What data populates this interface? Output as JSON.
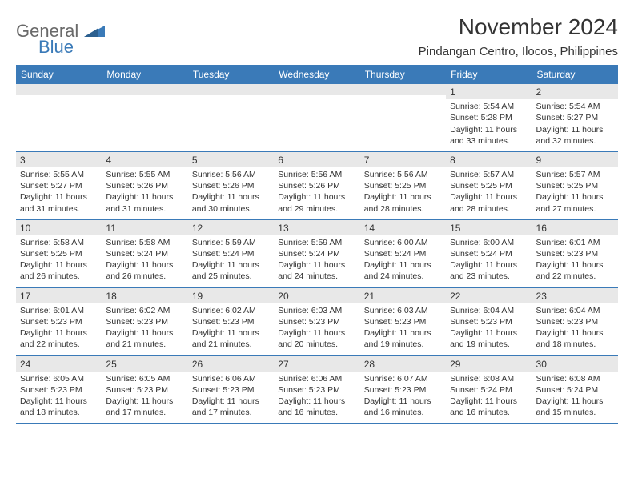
{
  "brand": {
    "word1": "General",
    "word2": "Blue",
    "color1": "#6a6a6a",
    "color2": "#3a7ab8"
  },
  "title": "November 2024",
  "location": "Pindangan Centro, Ilocos, Philippines",
  "colors": {
    "header_bg": "#3a7ab8",
    "header_text": "#ffffff",
    "cell_border": "#3a7ab8",
    "shade_bg": "#e8e8e8",
    "text": "#333333",
    "page_bg": "#ffffff"
  },
  "day_names": [
    "Sunday",
    "Monday",
    "Tuesday",
    "Wednesday",
    "Thursday",
    "Friday",
    "Saturday"
  ],
  "weeks": [
    [
      {
        "day": "",
        "sunrise": "",
        "sunset": "",
        "daylight": ""
      },
      {
        "day": "",
        "sunrise": "",
        "sunset": "",
        "daylight": ""
      },
      {
        "day": "",
        "sunrise": "",
        "sunset": "",
        "daylight": ""
      },
      {
        "day": "",
        "sunrise": "",
        "sunset": "",
        "daylight": ""
      },
      {
        "day": "",
        "sunrise": "",
        "sunset": "",
        "daylight": ""
      },
      {
        "day": "1",
        "sunrise": "Sunrise: 5:54 AM",
        "sunset": "Sunset: 5:28 PM",
        "daylight": "Daylight: 11 hours and 33 minutes."
      },
      {
        "day": "2",
        "sunrise": "Sunrise: 5:54 AM",
        "sunset": "Sunset: 5:27 PM",
        "daylight": "Daylight: 11 hours and 32 minutes."
      }
    ],
    [
      {
        "day": "3",
        "sunrise": "Sunrise: 5:55 AM",
        "sunset": "Sunset: 5:27 PM",
        "daylight": "Daylight: 11 hours and 31 minutes."
      },
      {
        "day": "4",
        "sunrise": "Sunrise: 5:55 AM",
        "sunset": "Sunset: 5:26 PM",
        "daylight": "Daylight: 11 hours and 31 minutes."
      },
      {
        "day": "5",
        "sunrise": "Sunrise: 5:56 AM",
        "sunset": "Sunset: 5:26 PM",
        "daylight": "Daylight: 11 hours and 30 minutes."
      },
      {
        "day": "6",
        "sunrise": "Sunrise: 5:56 AM",
        "sunset": "Sunset: 5:26 PM",
        "daylight": "Daylight: 11 hours and 29 minutes."
      },
      {
        "day": "7",
        "sunrise": "Sunrise: 5:56 AM",
        "sunset": "Sunset: 5:25 PM",
        "daylight": "Daylight: 11 hours and 28 minutes."
      },
      {
        "day": "8",
        "sunrise": "Sunrise: 5:57 AM",
        "sunset": "Sunset: 5:25 PM",
        "daylight": "Daylight: 11 hours and 28 minutes."
      },
      {
        "day": "9",
        "sunrise": "Sunrise: 5:57 AM",
        "sunset": "Sunset: 5:25 PM",
        "daylight": "Daylight: 11 hours and 27 minutes."
      }
    ],
    [
      {
        "day": "10",
        "sunrise": "Sunrise: 5:58 AM",
        "sunset": "Sunset: 5:25 PM",
        "daylight": "Daylight: 11 hours and 26 minutes."
      },
      {
        "day": "11",
        "sunrise": "Sunrise: 5:58 AM",
        "sunset": "Sunset: 5:24 PM",
        "daylight": "Daylight: 11 hours and 26 minutes."
      },
      {
        "day": "12",
        "sunrise": "Sunrise: 5:59 AM",
        "sunset": "Sunset: 5:24 PM",
        "daylight": "Daylight: 11 hours and 25 minutes."
      },
      {
        "day": "13",
        "sunrise": "Sunrise: 5:59 AM",
        "sunset": "Sunset: 5:24 PM",
        "daylight": "Daylight: 11 hours and 24 minutes."
      },
      {
        "day": "14",
        "sunrise": "Sunrise: 6:00 AM",
        "sunset": "Sunset: 5:24 PM",
        "daylight": "Daylight: 11 hours and 24 minutes."
      },
      {
        "day": "15",
        "sunrise": "Sunrise: 6:00 AM",
        "sunset": "Sunset: 5:24 PM",
        "daylight": "Daylight: 11 hours and 23 minutes."
      },
      {
        "day": "16",
        "sunrise": "Sunrise: 6:01 AM",
        "sunset": "Sunset: 5:23 PM",
        "daylight": "Daylight: 11 hours and 22 minutes."
      }
    ],
    [
      {
        "day": "17",
        "sunrise": "Sunrise: 6:01 AM",
        "sunset": "Sunset: 5:23 PM",
        "daylight": "Daylight: 11 hours and 22 minutes."
      },
      {
        "day": "18",
        "sunrise": "Sunrise: 6:02 AM",
        "sunset": "Sunset: 5:23 PM",
        "daylight": "Daylight: 11 hours and 21 minutes."
      },
      {
        "day": "19",
        "sunrise": "Sunrise: 6:02 AM",
        "sunset": "Sunset: 5:23 PM",
        "daylight": "Daylight: 11 hours and 21 minutes."
      },
      {
        "day": "20",
        "sunrise": "Sunrise: 6:03 AM",
        "sunset": "Sunset: 5:23 PM",
        "daylight": "Daylight: 11 hours and 20 minutes."
      },
      {
        "day": "21",
        "sunrise": "Sunrise: 6:03 AM",
        "sunset": "Sunset: 5:23 PM",
        "daylight": "Daylight: 11 hours and 19 minutes."
      },
      {
        "day": "22",
        "sunrise": "Sunrise: 6:04 AM",
        "sunset": "Sunset: 5:23 PM",
        "daylight": "Daylight: 11 hours and 19 minutes."
      },
      {
        "day": "23",
        "sunrise": "Sunrise: 6:04 AM",
        "sunset": "Sunset: 5:23 PM",
        "daylight": "Daylight: 11 hours and 18 minutes."
      }
    ],
    [
      {
        "day": "24",
        "sunrise": "Sunrise: 6:05 AM",
        "sunset": "Sunset: 5:23 PM",
        "daylight": "Daylight: 11 hours and 18 minutes."
      },
      {
        "day": "25",
        "sunrise": "Sunrise: 6:05 AM",
        "sunset": "Sunset: 5:23 PM",
        "daylight": "Daylight: 11 hours and 17 minutes."
      },
      {
        "day": "26",
        "sunrise": "Sunrise: 6:06 AM",
        "sunset": "Sunset: 5:23 PM",
        "daylight": "Daylight: 11 hours and 17 minutes."
      },
      {
        "day": "27",
        "sunrise": "Sunrise: 6:06 AM",
        "sunset": "Sunset: 5:23 PM",
        "daylight": "Daylight: 11 hours and 16 minutes."
      },
      {
        "day": "28",
        "sunrise": "Sunrise: 6:07 AM",
        "sunset": "Sunset: 5:23 PM",
        "daylight": "Daylight: 11 hours and 16 minutes."
      },
      {
        "day": "29",
        "sunrise": "Sunrise: 6:08 AM",
        "sunset": "Sunset: 5:24 PM",
        "daylight": "Daylight: 11 hours and 16 minutes."
      },
      {
        "day": "30",
        "sunrise": "Sunrise: 6:08 AM",
        "sunset": "Sunset: 5:24 PM",
        "daylight": "Daylight: 11 hours and 15 minutes."
      }
    ]
  ]
}
